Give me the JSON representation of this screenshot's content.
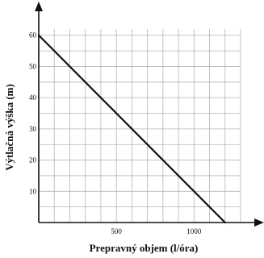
{
  "chart_data": {
    "type": "line",
    "xlabel": "Prepravný objem (l/óra)",
    "ylabel": "Výtlačná výška (m)",
    "xlim": [
      0,
      1300
    ],
    "ylim": [
      0,
      62
    ],
    "x_ticks": [
      "500",
      "1000"
    ],
    "y_ticks": [
      "10",
      "20",
      "30",
      "40",
      "50",
      "60"
    ],
    "grid": true,
    "grid_x_step": 100,
    "grid_y_step": 5,
    "series": [
      {
        "x": [
          0,
          1200
        ],
        "y": [
          60,
          0
        ]
      }
    ]
  }
}
